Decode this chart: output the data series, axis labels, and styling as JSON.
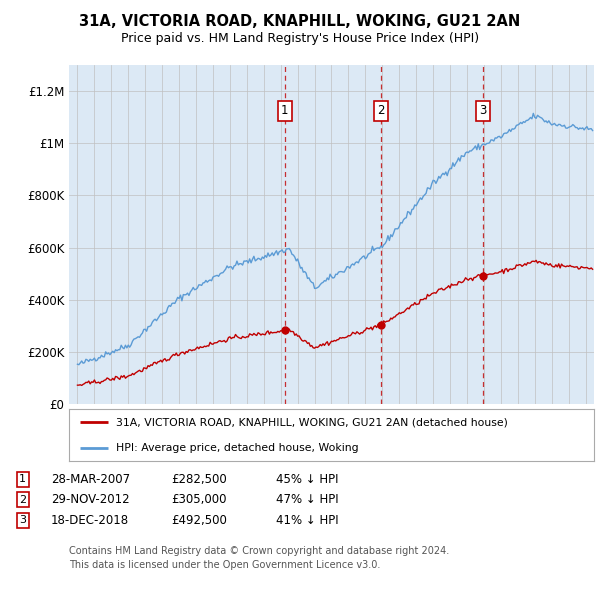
{
  "title_line1": "31A, VICTORIA ROAD, KNAPHILL, WOKING, GU21 2AN",
  "title_line2": "Price paid vs. HM Land Registry's House Price Index (HPI)",
  "background_color": "#ffffff",
  "plot_bg_color": "#dce9f5",
  "hpi_color": "#5b9bd5",
  "price_color": "#c00000",
  "sale_dates": [
    2007.24,
    2012.91,
    2018.96
  ],
  "sale_prices": [
    282500,
    305000,
    492500
  ],
  "sale_labels": [
    "1",
    "2",
    "3"
  ],
  "legend_entries": [
    "31A, VICTORIA ROAD, KNAPHILL, WOKING, GU21 2AN (detached house)",
    "HPI: Average price, detached house, Woking"
  ],
  "table_rows": [
    [
      "1",
      "28-MAR-2007",
      "£282,500",
      "45% ↓ HPI"
    ],
    [
      "2",
      "29-NOV-2012",
      "£305,000",
      "47% ↓ HPI"
    ],
    [
      "3",
      "18-DEC-2018",
      "£492,500",
      "41% ↓ HPI"
    ]
  ],
  "footer_text": "Contains HM Land Registry data © Crown copyright and database right 2024.\nThis data is licensed under the Open Government Licence v3.0.",
  "ylim": [
    0,
    1300000
  ],
  "xlim": [
    1994.5,
    2025.5
  ],
  "yticks": [
    0,
    200000,
    400000,
    600000,
    800000,
    1000000,
    1200000
  ],
  "ytick_labels": [
    "£0",
    "£200K",
    "£400K",
    "£600K",
    "£800K",
    "£1M",
    "£1.2M"
  ]
}
